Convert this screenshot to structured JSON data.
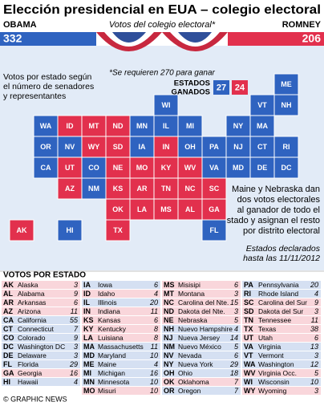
{
  "header": {
    "title": "Elección presidencial en EUA – colegio electoral",
    "obama_label": "OBAMA",
    "obama_votes": 332,
    "subtitle": "Votos del colegio electoral*",
    "romney_label": "ROMNEY",
    "romney_votes": 206,
    "obama_color": "#2f63c0",
    "romney_color": "#e2304d"
  },
  "notes": {
    "votes_note": [
      "Votos por estado según",
      "el número de senadores",
      "y representantes"
    ],
    "required": "*Se requieren 270 para ganar",
    "states_won_label": [
      "ESTADOS",
      "GANADOS"
    ],
    "states_won": [
      27,
      24
    ],
    "maine_nebraska": [
      "Maine y Nebraska dan",
      "dos votos electorales",
      "al ganador de todo el",
      "estado y asignan el resto",
      "por distrito electoral"
    ],
    "declared": [
      "Estados declarados",
      "hasta las 11/11/2012"
    ]
  },
  "table": {
    "title": "VOTOS POR ESTADO",
    "columns": [
      [
        {
          "abbr": "AK",
          "name": "Alaska",
          "votes": 3,
          "color": "#e2304d"
        },
        {
          "abbr": "AL",
          "name": "Alabama",
          "votes": 9,
          "color": "#e2304d"
        },
        {
          "abbr": "AR",
          "name": "Arkansas",
          "votes": 6,
          "color": "#e2304d"
        },
        {
          "abbr": "AZ",
          "name": "Arizona",
          "votes": 11,
          "color": "#e2304d"
        },
        {
          "abbr": "CA",
          "name": "California",
          "votes": 55,
          "color": "#2f63c0"
        },
        {
          "abbr": "CT",
          "name": "Connecticut",
          "votes": 7,
          "color": "#2f63c0"
        },
        {
          "abbr": "CO",
          "name": "Colorado",
          "votes": 9,
          "color": "#2f63c0"
        },
        {
          "abbr": "DC",
          "name": "Washington DC",
          "votes": 3,
          "color": "#2f63c0"
        },
        {
          "abbr": "DE",
          "name": "Delaware",
          "votes": 3,
          "color": "#2f63c0"
        },
        {
          "abbr": "FL",
          "name": "Florida",
          "votes": 29,
          "color": "#2f63c0"
        },
        {
          "abbr": "GA",
          "name": "Georgia",
          "votes": 16,
          "color": "#e2304d"
        },
        {
          "abbr": "HI",
          "name": "Hawaii",
          "votes": 4,
          "color": "#2f63c0"
        }
      ],
      [
        {
          "abbr": "IA",
          "name": "Iowa",
          "votes": 6,
          "color": "#2f63c0"
        },
        {
          "abbr": "ID",
          "name": "Idaho",
          "votes": 4,
          "color": "#e2304d"
        },
        {
          "abbr": "IL",
          "name": "Illinois",
          "votes": 20,
          "color": "#2f63c0"
        },
        {
          "abbr": "IN",
          "name": "Indiana",
          "votes": 11,
          "color": "#e2304d"
        },
        {
          "abbr": "KS",
          "name": "Kansas",
          "votes": 6,
          "color": "#e2304d"
        },
        {
          "abbr": "KY",
          "name": "Kentucky",
          "votes": 8,
          "color": "#e2304d"
        },
        {
          "abbr": "LA",
          "name": "Luisiana",
          "votes": 8,
          "color": "#e2304d"
        },
        {
          "abbr": "MA",
          "name": "Massachusetts",
          "votes": 11,
          "color": "#2f63c0"
        },
        {
          "abbr": "MD",
          "name": "Maryland",
          "votes": 10,
          "color": "#2f63c0"
        },
        {
          "abbr": "ME",
          "name": "Maine",
          "votes": 4,
          "color": "#2f63c0"
        },
        {
          "abbr": "MI",
          "name": "Michigan",
          "votes": 16,
          "color": "#2f63c0"
        },
        {
          "abbr": "MN",
          "name": "Minnesota",
          "votes": 10,
          "color": "#2f63c0"
        },
        {
          "abbr": "MO",
          "name": "Misuri",
          "votes": 10,
          "color": "#e2304d"
        }
      ],
      [
        {
          "abbr": "MS",
          "name": "Misisipi",
          "votes": 6,
          "color": "#e2304d"
        },
        {
          "abbr": "MT",
          "name": "Montana",
          "votes": 3,
          "color": "#e2304d"
        },
        {
          "abbr": "NC",
          "name": "Carolina del Nte.",
          "votes": 15,
          "color": "#e2304d"
        },
        {
          "abbr": "ND",
          "name": "Dakota del Nte.",
          "votes": 3,
          "color": "#e2304d"
        },
        {
          "abbr": "NE",
          "name": "Nebraska",
          "votes": 5,
          "color": "#e2304d"
        },
        {
          "abbr": "NH",
          "name": "Nuevo Hampshire",
          "votes": 4,
          "color": "#2f63c0"
        },
        {
          "abbr": "NJ",
          "name": "Nueva Jersey",
          "votes": 14,
          "color": "#2f63c0"
        },
        {
          "abbr": "NM",
          "name": "Nuevo México",
          "votes": 5,
          "color": "#2f63c0"
        },
        {
          "abbr": "NV",
          "name": "Nevada",
          "votes": 6,
          "color": "#2f63c0"
        },
        {
          "abbr": "NY",
          "name": "Nueva York",
          "votes": 29,
          "color": "#2f63c0"
        },
        {
          "abbr": "OH",
          "name": "Ohio",
          "votes": 18,
          "color": "#2f63c0"
        },
        {
          "abbr": "OK",
          "name": "Oklahoma",
          "votes": 7,
          "color": "#e2304d"
        },
        {
          "abbr": "OR",
          "name": "Oregon",
          "votes": 7,
          "color": "#2f63c0"
        }
      ],
      [
        {
          "abbr": "PA",
          "name": "Pennsylvania",
          "votes": 20,
          "color": "#2f63c0"
        },
        {
          "abbr": "RI",
          "name": "Rhode Island",
          "votes": 4,
          "color": "#2f63c0"
        },
        {
          "abbr": "SC",
          "name": "Carolina del Sur",
          "votes": 9,
          "color": "#e2304d"
        },
        {
          "abbr": "SD",
          "name": "Dakota del Sur",
          "votes": 3,
          "color": "#e2304d"
        },
        {
          "abbr": "TN",
          "name": "Tennessee",
          "votes": 11,
          "color": "#e2304d"
        },
        {
          "abbr": "TX",
          "name": "Texas",
          "votes": 38,
          "color": "#e2304d"
        },
        {
          "abbr": "UT",
          "name": "Utah",
          "votes": 6,
          "color": "#e2304d"
        },
        {
          "abbr": "VA",
          "name": "Virginia",
          "votes": 13,
          "color": "#2f63c0"
        },
        {
          "abbr": "VT",
          "name": "Vermont",
          "votes": 3,
          "color": "#2f63c0"
        },
        {
          "abbr": "WA",
          "name": "Washington",
          "votes": 12,
          "color": "#2f63c0"
        },
        {
          "abbr": "WV",
          "name": "Virginia Occ.",
          "votes": 5,
          "color": "#e2304d"
        },
        {
          "abbr": "WI",
          "name": "Wisconsin",
          "votes": 10,
          "color": "#2f63c0"
        },
        {
          "abbr": "WY",
          "name": "Wyoming",
          "votes": 3,
          "color": "#e2304d"
        }
      ]
    ]
  },
  "footer": "© GRAPHIC NEWS"
}
